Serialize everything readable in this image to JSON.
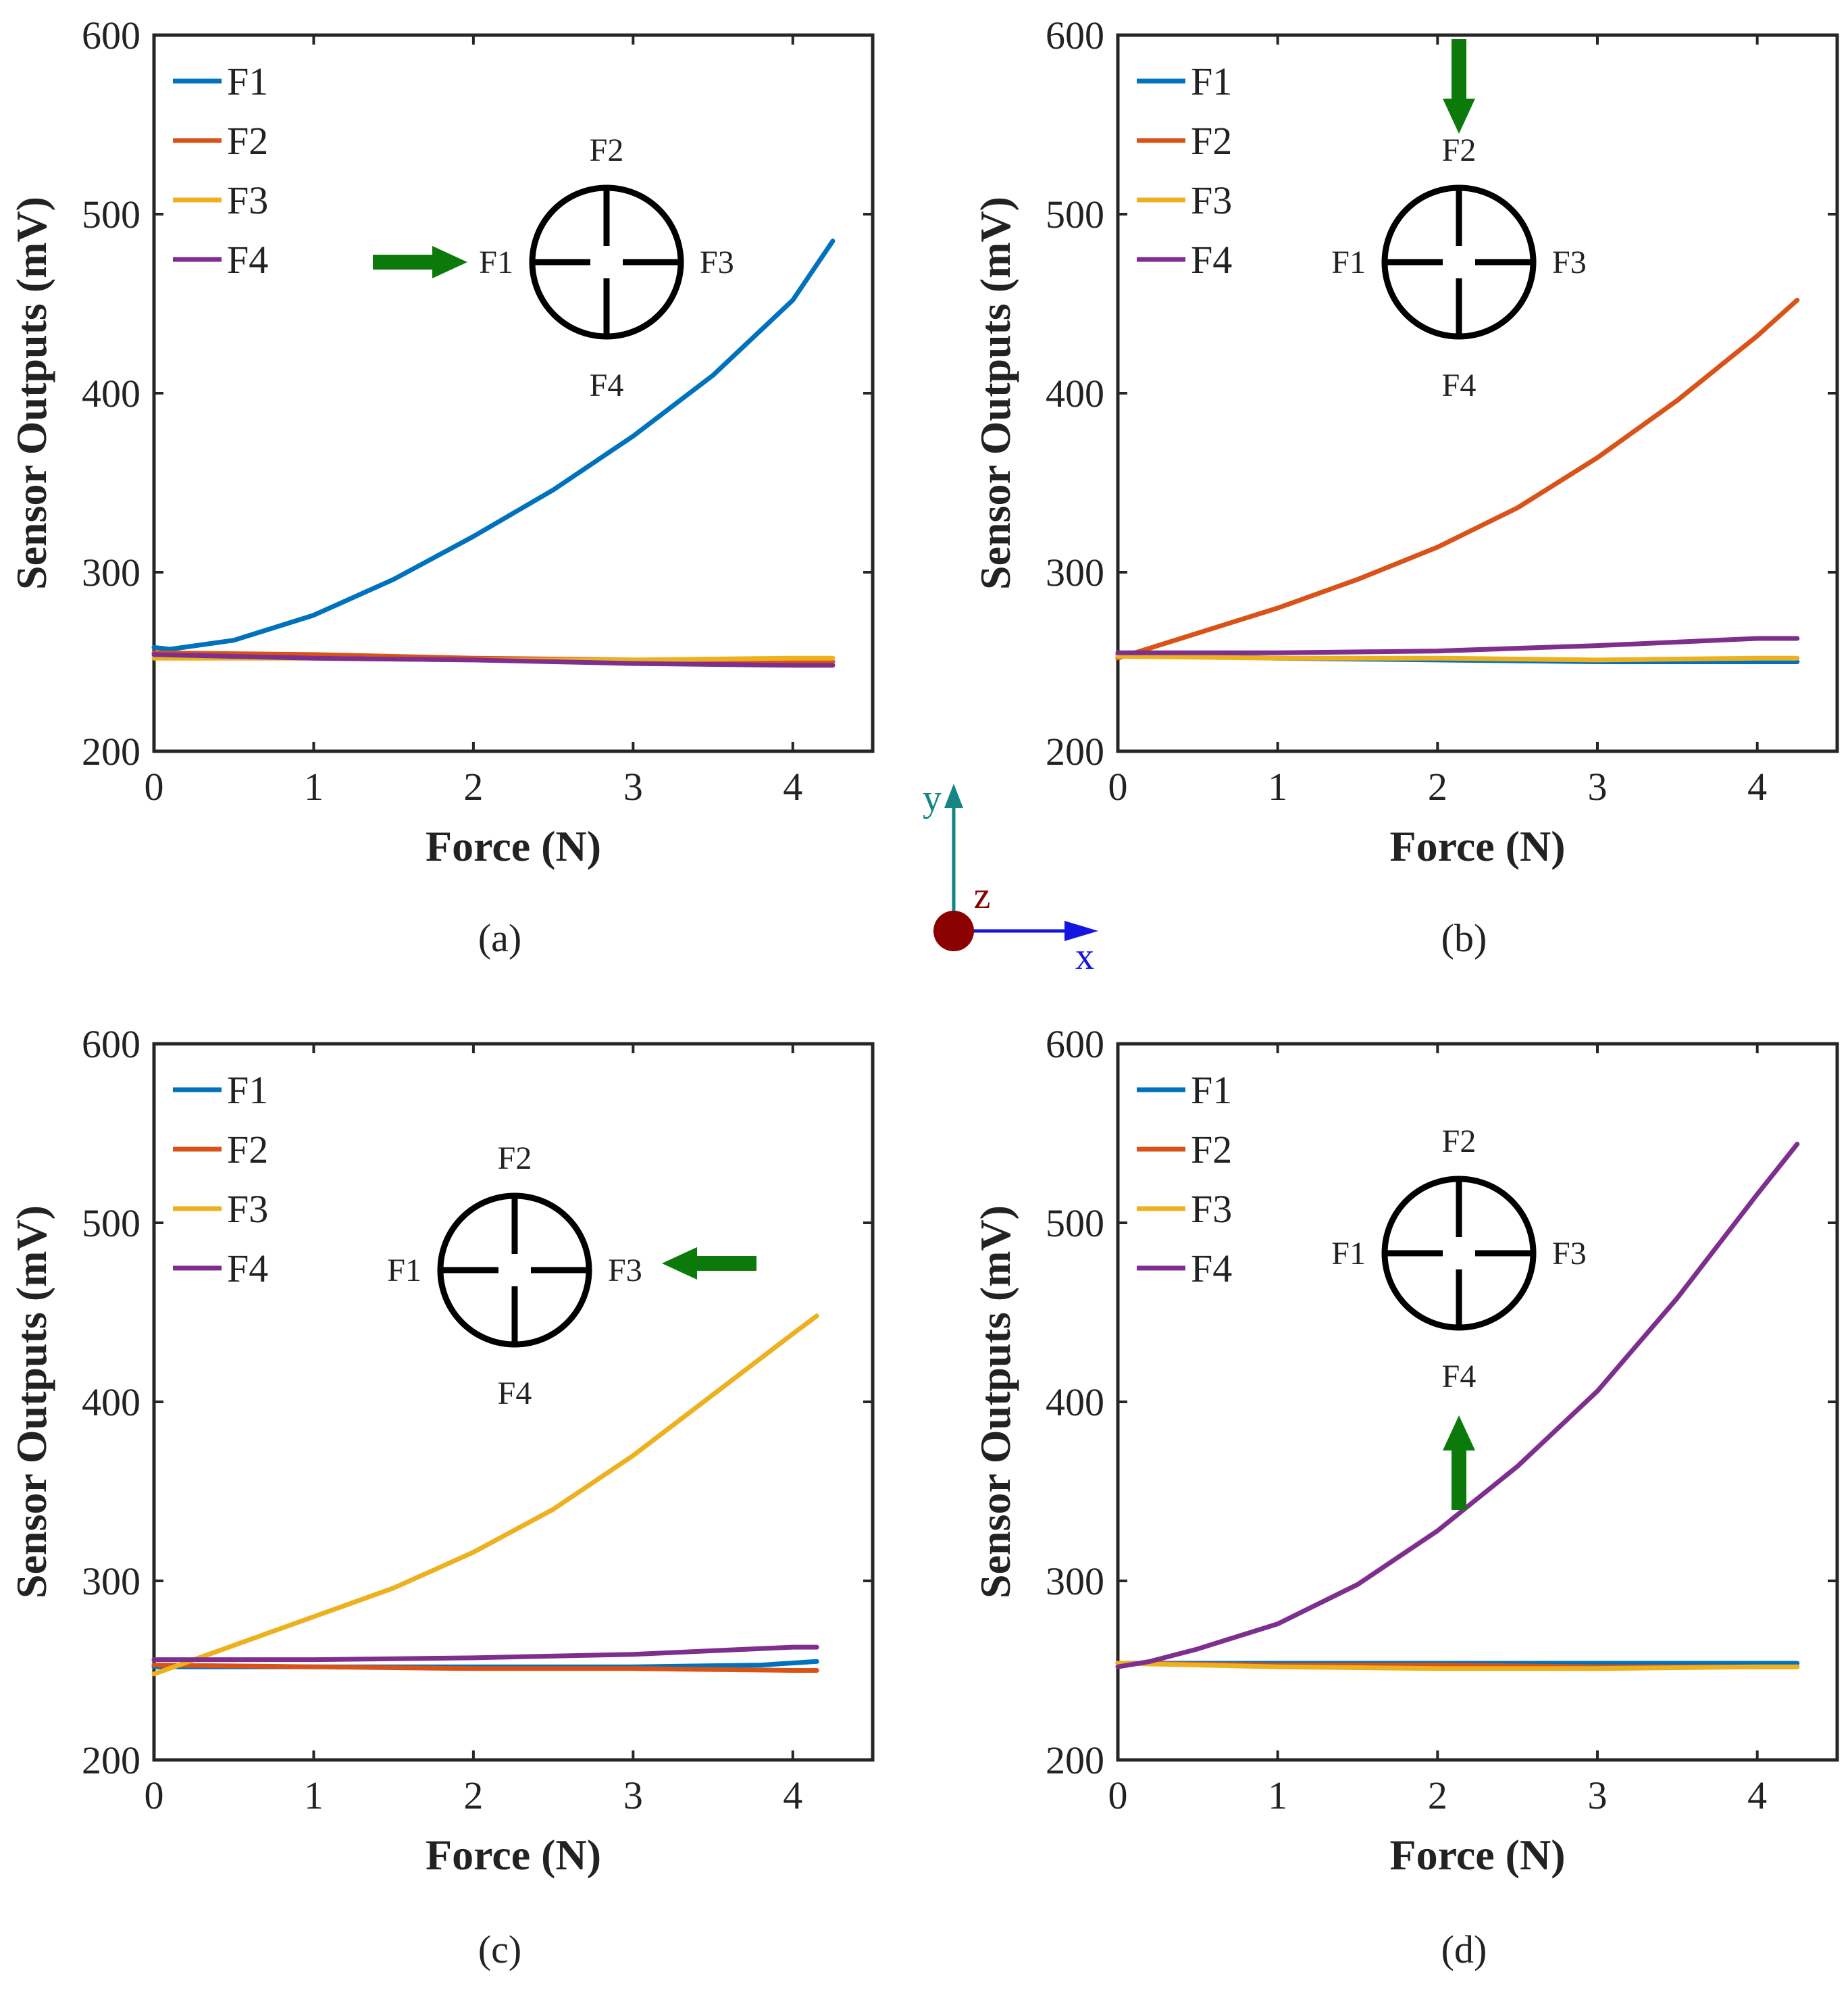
{
  "colors": {
    "F1": "#0072BD",
    "F2": "#D95319",
    "F3": "#EDB120",
    "F4": "#7E2F8E",
    "arrow": "#0B7A0B",
    "axis_y": "#138585",
    "axis_z": "#8B0000",
    "axis_x": "#1515E0"
  },
  "inset_labels": {
    "top": "F2",
    "left": "F1",
    "right": "F3",
    "bottom": "F4"
  },
  "coord_axes": {
    "x_label": "x",
    "y_label": "y",
    "z_label": "z"
  },
  "chart_data": [
    {
      "type": "line",
      "panel_label": "(a)",
      "xlabel": "Force (N)",
      "ylabel": "Sensor Outputs (mV)",
      "xlim": [
        0,
        4.5
      ],
      "ylim": [
        200,
        600
      ],
      "xticks": [
        "0",
        "1",
        "2",
        "3",
        "4"
      ],
      "yticks": [
        "200",
        "300",
        "400",
        "500",
        "600"
      ],
      "legend": [
        "F1",
        "F2",
        "F3",
        "F4"
      ],
      "force_direction": "right",
      "series": [
        {
          "name": "F1",
          "x": [
            0,
            0.1,
            0.5,
            1.0,
            1.5,
            2.0,
            2.5,
            3.0,
            3.5,
            4.0,
            4.25
          ],
          "y": [
            258,
            257,
            262,
            276,
            296,
            320,
            346,
            376,
            410,
            452,
            485
          ]
        },
        {
          "name": "F2",
          "x": [
            0,
            1,
            2,
            3,
            4,
            4.25
          ],
          "y": [
            255,
            254,
            252,
            251,
            250,
            250
          ]
        },
        {
          "name": "F3",
          "x": [
            0,
            1,
            2,
            3,
            4,
            4.25
          ],
          "y": [
            252,
            252,
            251,
            251,
            252,
            252
          ]
        },
        {
          "name": "F4",
          "x": [
            0,
            1,
            2,
            3,
            4,
            4.25
          ],
          "y": [
            254,
            252,
            251,
            249,
            248,
            248
          ]
        }
      ]
    },
    {
      "type": "line",
      "panel_label": "(b)",
      "xlabel": "Force (N)",
      "ylabel": "Sensor Outputs (mV)",
      "xlim": [
        0,
        4.5
      ],
      "ylim": [
        200,
        600
      ],
      "xticks": [
        "0",
        "1",
        "2",
        "3",
        "4"
      ],
      "yticks": [
        "200",
        "300",
        "400",
        "500",
        "600"
      ],
      "legend": [
        "F1",
        "F2",
        "F3",
        "F4"
      ],
      "force_direction": "down",
      "series": [
        {
          "name": "F1",
          "x": [
            0,
            1,
            2,
            3,
            4,
            4.25
          ],
          "y": [
            254,
            252,
            251,
            250,
            250,
            250
          ]
        },
        {
          "name": "F2",
          "x": [
            0,
            0.5,
            1.0,
            1.5,
            2.0,
            2.5,
            3.0,
            3.5,
            4.0,
            4.25
          ],
          "y": [
            252,
            266,
            280,
            296,
            314,
            336,
            364,
            396,
            432,
            452
          ]
        },
        {
          "name": "F3",
          "x": [
            0,
            1,
            2,
            3,
            4,
            4.25
          ],
          "y": [
            253,
            252,
            252,
            251,
            252,
            252
          ]
        },
        {
          "name": "F4",
          "x": [
            0,
            1,
            2,
            3,
            4,
            4.25
          ],
          "y": [
            255,
            255,
            256,
            259,
            263,
            263
          ]
        }
      ]
    },
    {
      "type": "line",
      "panel_label": "(c)",
      "xlabel": "Force (N)",
      "ylabel": "Sensor Outputs (mV)",
      "xlim": [
        0,
        4.5
      ],
      "ylim": [
        200,
        600
      ],
      "xticks": [
        "0",
        "1",
        "2",
        "3",
        "4"
      ],
      "yticks": [
        "200",
        "300",
        "400",
        "500",
        "600"
      ],
      "legend": [
        "F1",
        "F2",
        "F3",
        "F4"
      ],
      "force_direction": "left",
      "series": [
        {
          "name": "F1",
          "x": [
            0,
            1,
            2,
            3,
            3.8,
            4.15
          ],
          "y": [
            252,
            252,
            252,
            252,
            253,
            255
          ]
        },
        {
          "name": "F2",
          "x": [
            0,
            1,
            2,
            3,
            4,
            4.15
          ],
          "y": [
            253,
            252,
            251,
            251,
            250,
            250
          ]
        },
        {
          "name": "F3",
          "x": [
            0,
            0.5,
            1.0,
            1.5,
            2.0,
            2.5,
            3.0,
            3.5,
            4.0,
            4.15
          ],
          "y": [
            248,
            264,
            280,
            296,
            316,
            340,
            370,
            404,
            438,
            448
          ]
        },
        {
          "name": "F4",
          "x": [
            0,
            1,
            2,
            3,
            4,
            4.15
          ],
          "y": [
            256,
            256,
            257,
            259,
            263,
            263
          ]
        }
      ]
    },
    {
      "type": "line",
      "panel_label": "(d)",
      "xlabel": "Force (N)",
      "ylabel": "Sensor Outputs (mV)",
      "xlim": [
        0,
        4.5
      ],
      "ylim": [
        200,
        600
      ],
      "xticks": [
        "0",
        "1",
        "2",
        "3",
        "4"
      ],
      "yticks": [
        "200",
        "300",
        "400",
        "500",
        "600"
      ],
      "legend": [
        "F1",
        "F2",
        "F3",
        "F4"
      ],
      "force_direction": "up",
      "series": [
        {
          "name": "F1",
          "x": [
            0,
            1,
            2,
            3,
            4,
            4.25
          ],
          "y": [
            254,
            254,
            254,
            254,
            254,
            254
          ]
        },
        {
          "name": "F2",
          "x": [
            0,
            1,
            2,
            3,
            4,
            4.25
          ],
          "y": [
            254,
            253,
            253,
            252,
            252,
            252
          ]
        },
        {
          "name": "F3",
          "x": [
            0,
            1,
            2,
            3,
            4,
            4.25
          ],
          "y": [
            254,
            252,
            251,
            251,
            252,
            252
          ]
        },
        {
          "name": "F4",
          "x": [
            0,
            0.2,
            0.5,
            1.0,
            1.5,
            2.0,
            2.5,
            3.0,
            3.5,
            4.0,
            4.25
          ],
          "y": [
            252,
            255,
            262,
            276,
            298,
            328,
            364,
            406,
            458,
            516,
            544
          ]
        }
      ]
    }
  ]
}
